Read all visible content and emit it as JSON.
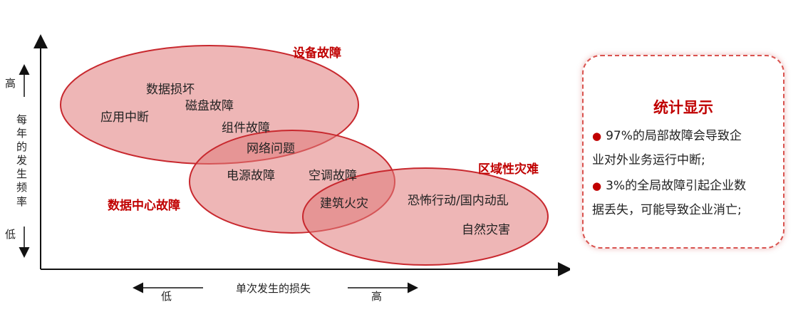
{
  "diagram": {
    "groups": {
      "equipment": "设备故障",
      "datacenter": "数据中心故障",
      "regional": "区域性灾难"
    },
    "items": {
      "data_damage": "数据损坏",
      "disk_failure": "磁盘故障",
      "app_interrupt": "应用中断",
      "component_failure": "组件故障",
      "network_issue": "网络问题",
      "power_failure": "电源故障",
      "ac_failure": "空调故障",
      "building_fire": "建筑火灾",
      "terror": "恐怖行动/国内动乱",
      "natural_disaster": "自然灾害"
    },
    "y_axis": {
      "high": "高",
      "label_chars": [
        "每",
        "年",
        "的",
        "发",
        "生",
        "频",
        "率"
      ],
      "low": "低"
    },
    "x_axis": {
      "low": "低",
      "label": "单次发生的损失",
      "high": "高"
    }
  },
  "stats": {
    "title": "统计显示",
    "lines": [
      "● 97%的局部故障会导致企",
      "业对外业务运行中断;",
      "● 3%的全局故障引起企业数",
      "据丢失，可能导致企业消亡;"
    ]
  },
  "colors": {
    "ellipse_fill": "#e8a0a0",
    "ellipse_stroke": "#c8282e",
    "label_red": "#c00000"
  }
}
